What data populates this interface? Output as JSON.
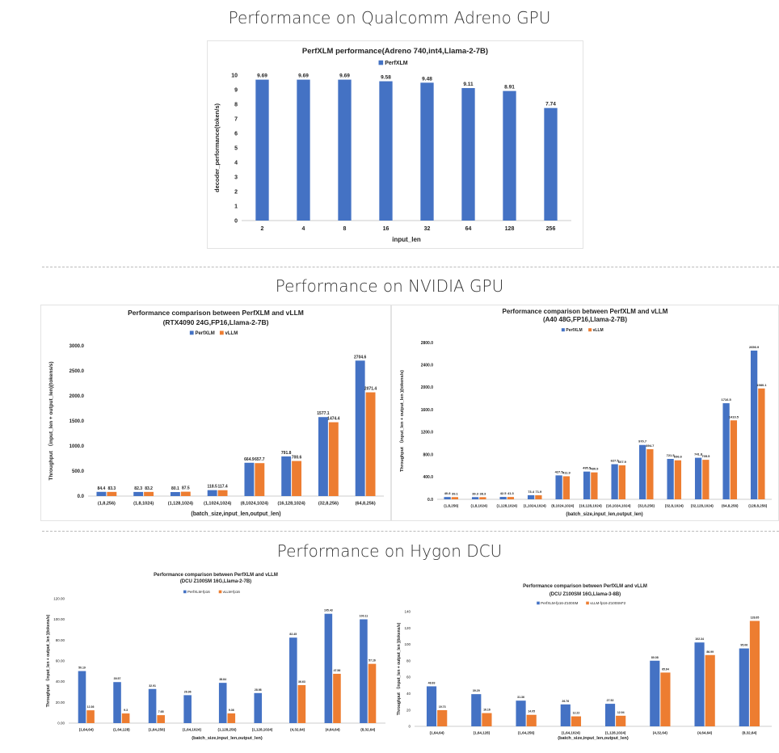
{
  "sections": {
    "adreno": "Performance on Qualcomm Adreno GPU",
    "nvidia": "Performance on NVIDIA GPU",
    "hygon": "Performance on Hygon DCU"
  },
  "colors": {
    "series1": "#4472c4",
    "series2": "#ed7d31"
  },
  "chart_data": [
    {
      "type": "bar",
      "title": "PerfXLM performance(Adreno 740,int4,Llama-2-7B)",
      "subtitle": "",
      "xlabel": "input_len",
      "ylabel": "decoder_performance(token/s)",
      "categories": [
        "2",
        "4",
        "8",
        "16",
        "32",
        "64",
        "128",
        "256"
      ],
      "series": [
        {
          "name": "PerfXLM",
          "values": [
            9.69,
            9.69,
            9.69,
            9.58,
            9.48,
            9.11,
            8.91,
            7.74
          ]
        }
      ],
      "data_labels": [
        [
          "9.69",
          "9.69",
          "9.69",
          "9.58",
          "9.48",
          "9.11",
          "8.91",
          "7.74"
        ]
      ],
      "ylim": [
        0,
        10
      ],
      "yticks": [
        "0",
        "1",
        "2",
        "3",
        "4",
        "5",
        "6",
        "7",
        "8",
        "9",
        "10"
      ],
      "grid": false,
      "legend": "top"
    },
    {
      "type": "bar",
      "title": "Performance comparison between PerfXLM and vLLM",
      "subtitle": "(RTX4090 24G,FP16,Llama-2-7B)",
      "xlabel": "(batch_size,input_len,output_len)",
      "ylabel": "Throughput （input_len + output_len)(tokens/s)",
      "categories": [
        "(1,8,256)",
        "(1,8,1024)",
        "(1,128,1024)",
        "(1,1024,1024)",
        "(8,1024,1024)",
        "(16,128,1024)",
        "(32,8,256)",
        "(64,8,256)"
      ],
      "series": [
        {
          "name": "PerfXLM",
          "values": [
            84.4,
            82.3,
            80.1,
            118.5,
            664.9,
            791.8,
            1577.1,
            2704.6
          ]
        },
        {
          "name": "vLLM",
          "values": [
            83.3,
            83.2,
            87.5,
            117.4,
            657.7,
            700.6,
            1474.4,
            2071.4
          ]
        }
      ],
      "data_labels": [
        [
          "84.4",
          "82.3",
          "80.1",
          "118.5",
          "664.9",
          "791.8",
          "1577.1",
          "2704.6"
        ],
        [
          "83.3",
          "83.2",
          "87.5",
          "117.4",
          "657.7",
          "700.6",
          "1474.4",
          "2071.4"
        ]
      ],
      "ylim": [
        0,
        3000
      ],
      "yticks": [
        "0.0",
        "500.0",
        "1000.0",
        "1500.0",
        "2000.0",
        "2500.0",
        "3000.0"
      ],
      "grid": false,
      "legend": "top"
    },
    {
      "type": "bar",
      "title": "Performance comparison between PerfXLM and vLLM",
      "subtitle": "(A40 48G,FP16,Llama-2-7B)",
      "xlabel": "(batch_size,input_len,output_len)",
      "ylabel": "Throughput （input_len + output_len )(tokens/s)",
      "categories": [
        "(1,8,256)",
        "(1,8,1024)",
        "(1,128,1024)",
        "(1,1024,1024)",
        "(8,1024,1024)",
        "(16,128,1024)",
        "(16,1024,1024)",
        "(32,8,256)",
        "(32,8,1024)",
        "(32,128,1024)",
        "(64,8,256)",
        "(128,8,256)"
      ],
      "series": [
        {
          "name": "PerfXLM",
          "values": [
            40.8,
            39.3,
            42.5,
            73.4,
            427.5,
            495.5,
            627.5,
            970.7,
            721.5,
            741.8,
            1716.5,
            2656.9
          ]
        },
        {
          "name": "vLLM",
          "values": [
            39.1,
            38.3,
            41.3,
            71.9,
            411.9,
            480.9,
            607.9,
            894.7,
            696.6,
            705.5,
            1410.5,
            1980.1
          ]
        }
      ],
      "data_labels": [
        [
          "40.8",
          "39.3",
          "42.5",
          "73.4",
          "427.5",
          "495.5",
          "627.5",
          "970.7",
          "721.5",
          "741.8",
          "1716.5",
          "2656.9"
        ],
        [
          "39.1",
          "38.3",
          "41.3",
          "71.9",
          "411.9",
          "480.9",
          "607.9",
          "894.7",
          "696.6",
          "705.5",
          "1410.5",
          "1980.1"
        ]
      ],
      "ylim": [
        0,
        2800
      ],
      "yticks": [
        "0.0",
        "400.0",
        "800.0",
        "1200.0",
        "1600.0",
        "2000.0",
        "2400.0",
        "2800.0"
      ],
      "grid": false,
      "legend": "top"
    },
    {
      "type": "bar",
      "title": "Performance comparison between PerfXLM and vLLM",
      "subtitle": "(DCU Z100SM 16G,Llama-2-7B)",
      "xlabel": "(batch_size,input_len,output_len)",
      "ylabel": "Throughput （input_len + output_len )(tokens/s)",
      "categories": [
        "(1,64,64)",
        "(1,64,128)",
        "(1,64,256)",
        "(1,64,1024)",
        "(1,128,256)",
        "(1,128,1024)",
        "(4,32,64)",
        "(4,64,64)",
        "(8,32,64)"
      ],
      "series": [
        {
          "name": "PerfXLM-fp16",
          "values": [
            50.19,
            39.57,
            32.91,
            26.96,
            38.84,
            28.98,
            82.45,
            105.43,
            100.11
          ]
        },
        {
          "name": "vLLM-fp16",
          "values": [
            12.36,
            9.3,
            7.68,
            null,
            9.36,
            null,
            36.63,
            47.56,
            57.16
          ]
        }
      ],
      "data_labels": [
        [
          "50.19",
          "39.57",
          "32.91",
          "26.96",
          "38.84",
          "28.98",
          "82.45",
          "105.43",
          "100.11"
        ],
        [
          "12.36",
          "9.3",
          "7.68",
          "",
          "9.36",
          "",
          "36.63",
          "47.56",
          "57.16"
        ]
      ],
      "ylim": [
        0,
        120
      ],
      "yticks": [
        "0.00",
        "20.00",
        "40.00",
        "60.00",
        "80.00",
        "100.00",
        "120.00"
      ],
      "grid": false,
      "legend": "top"
    },
    {
      "type": "bar",
      "title": "Performance comparison between PerfXLM and vLLM",
      "subtitle": "(DCU Z100SM 16G,Llama-3-8B)",
      "xlabel": "(batch_size,input_len,output_len)",
      "ylabel": "Throughput （input_len + output_len )(tokens/s)",
      "categories": [
        "(1,64,64)",
        "(1,64,128)",
        "(1,64,256)",
        "(1,64,1024)",
        "(1,128,1024)",
        "(4,32,64)",
        "(4,64,64)",
        "(8,32,64)"
      ],
      "series": [
        {
          "name": "PerfXLM-fp16-Z100SM",
          "values": [
            48.83,
            39.29,
            31.36,
            26.76,
            27.52,
            80.08,
            102.34,
            95.06
          ]
        },
        {
          "name": "vLLM-fp16-Z100SM*2",
          "values": [
            19.73,
            16.16,
            14.05,
            12.22,
            12.94,
            65.64,
            86.99,
            128.65
          ]
        }
      ],
      "data_labels": [
        [
          "48.83",
          "39.29",
          "31.36",
          "26.76",
          "27.52",
          "80.08",
          "102.34",
          "95.06"
        ],
        [
          "19.73",
          "16.16",
          "14.05",
          "12.22",
          "12.94",
          "65.64",
          "86.99",
          "128.65"
        ]
      ],
      "ylim": [
        0,
        140
      ],
      "yticks": [
        "0",
        "20",
        "40",
        "60",
        "80",
        "100",
        "120",
        "140"
      ],
      "grid": false,
      "legend": "top"
    }
  ]
}
